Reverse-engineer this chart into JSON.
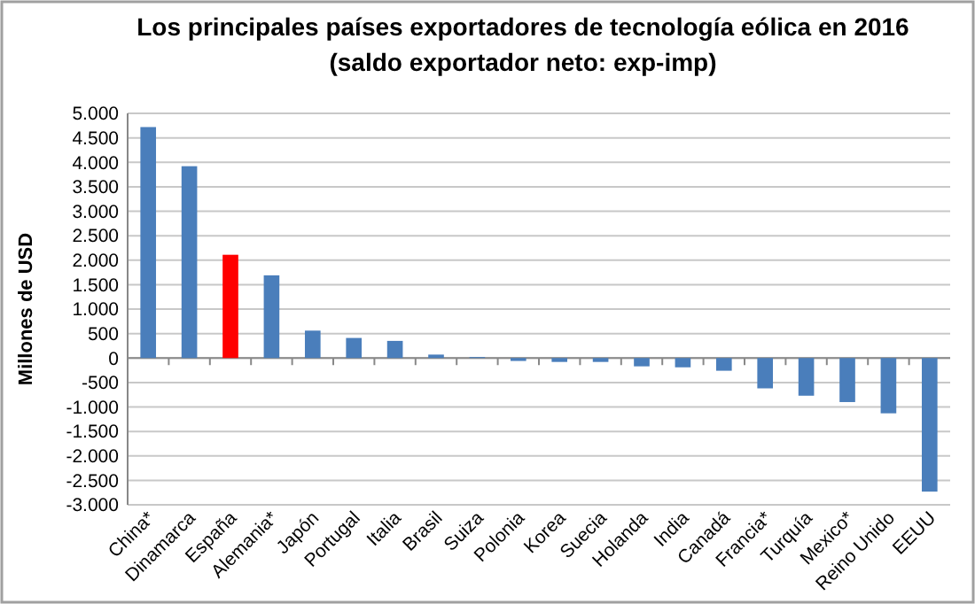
{
  "chart_data": {
    "type": "bar",
    "title": "Los principales países exportadores de tecnología eólica en 2016\n(saldo exportador neto: exp-imp)",
    "ylabel": "Millones de USD",
    "categories": [
      "China*",
      "Dinamarca",
      "España",
      "Alemania*",
      "Japón",
      "Portugal",
      "Italia",
      "Brasil",
      "Suiza",
      "Polonia",
      "Korea",
      "Suecia",
      "Holanda",
      "India",
      "Canadá",
      "Francia*",
      "Turquía",
      "Mexico*",
      "Reino Unido",
      "EEUU"
    ],
    "values": [
      4720,
      3920,
      2110,
      1690,
      560,
      410,
      350,
      70,
      20,
      -60,
      -80,
      -80,
      -170,
      -190,
      -260,
      -620,
      -770,
      -900,
      -1130,
      -2730
    ],
    "colors": [
      "#4a7ebb",
      "#4a7ebb",
      "#ff0000",
      "#4a7ebb",
      "#4a7ebb",
      "#4a7ebb",
      "#4a7ebb",
      "#4a7ebb",
      "#4a7ebb",
      "#4a7ebb",
      "#4a7ebb",
      "#4a7ebb",
      "#4a7ebb",
      "#4a7ebb",
      "#4a7ebb",
      "#4a7ebb",
      "#4a7ebb",
      "#4a7ebb",
      "#4a7ebb",
      "#4a7ebb"
    ],
    "ylim": [
      -3000,
      5000
    ],
    "yticks": [
      {
        "value": 5000,
        "label": "5.000"
      },
      {
        "value": 4500,
        "label": "4.500"
      },
      {
        "value": 4000,
        "label": "4.000"
      },
      {
        "value": 3500,
        "label": "3.500"
      },
      {
        "value": 3000,
        "label": "3.000"
      },
      {
        "value": 2500,
        "label": "2.500"
      },
      {
        "value": 2000,
        "label": "2.000"
      },
      {
        "value": 1500,
        "label": "1.500"
      },
      {
        "value": 1000,
        "label": "1.000"
      },
      500,
      0,
      -500,
      {
        "value": -1000,
        "label": "-1.000"
      },
      {
        "value": -1500,
        "label": "-1.500"
      },
      {
        "value": -2000,
        "label": "-2.000"
      },
      {
        "value": -2500,
        "label": "-2.500"
      },
      {
        "value": -3000,
        "label": "-3.000"
      }
    ],
    "grid": true
  }
}
